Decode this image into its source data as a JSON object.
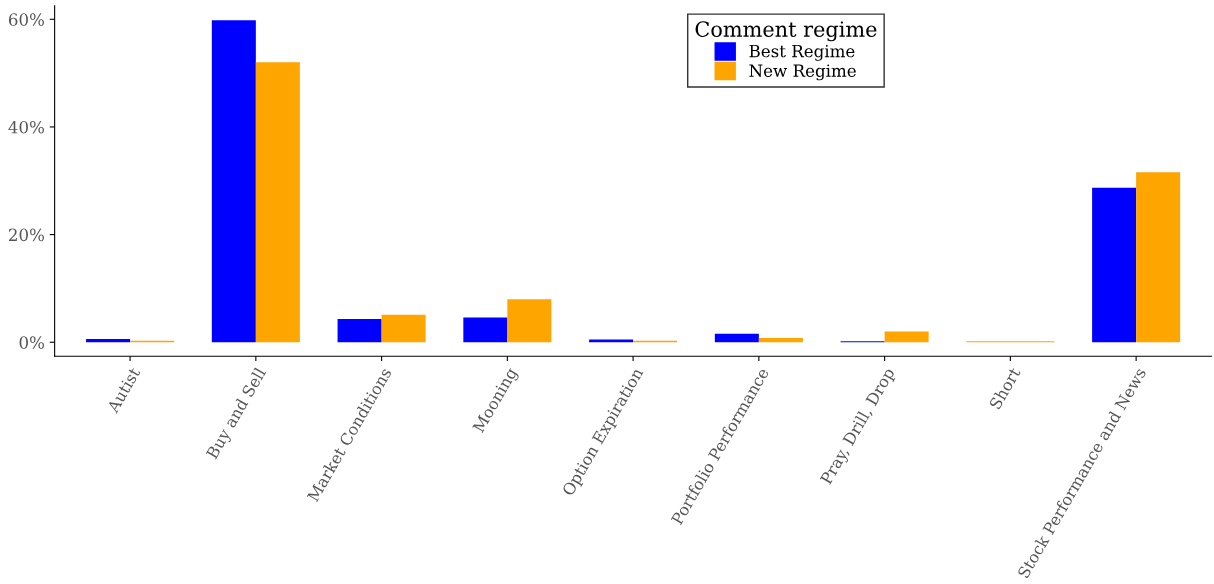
{
  "chart_data": {
    "type": "bar",
    "categories": [
      "Autist",
      "Buy and Sell",
      "Market Conditions",
      "Mooning",
      "Option Expiration",
      "Portfolio Performance",
      "Pray, Drill, Drop",
      "Short",
      "Stock Performance and News"
    ],
    "series": [
      {
        "name": "Best Regime",
        "color": "#0000ff",
        "values": [
          0.6,
          59.8,
          4.3,
          4.6,
          0.5,
          1.6,
          0.2,
          null,
          28.7
        ]
      },
      {
        "name": "New Regime",
        "color": "#ffa500",
        "values": [
          0.3,
          52.0,
          5.1,
          8.0,
          0.3,
          0.8,
          2.0,
          0.2,
          31.6
        ]
      }
    ],
    "ylim": [
      -2.6,
      62.5
    ],
    "yticks": [
      {
        "value": 0,
        "label": "0%"
      },
      {
        "value": 20,
        "label": "20%"
      },
      {
        "value": 40,
        "label": "40%"
      },
      {
        "value": 60,
        "label": "60%"
      }
    ],
    "legend_title": "Comment regime",
    "legend": "top",
    "grid": false
  }
}
